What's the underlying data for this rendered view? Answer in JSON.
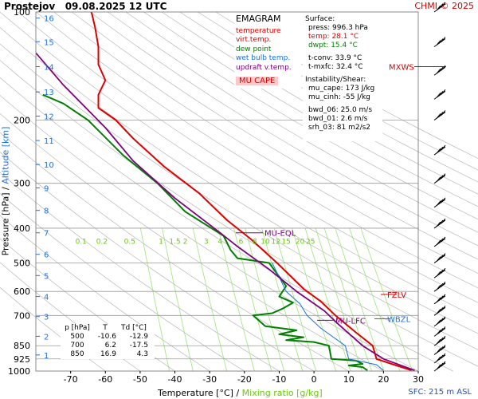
{
  "header": {
    "station": "Prostejov",
    "datetime": "09.08.2025 12 UTC",
    "copyright": "CHMI © 2025"
  },
  "legend": {
    "title": "EMAGRAM",
    "items": [
      {
        "label": "temperature",
        "color": "#e00000"
      },
      {
        "label": "virt.temp.",
        "color": "#e00000"
      },
      {
        "label": "dew point",
        "color": "#008000"
      },
      {
        "label": "wet bulb temp.",
        "color": "#1e6fe0"
      },
      {
        "label": "updraft v.temp.",
        "color": "#800080"
      }
    ],
    "mu_cape_label": "MU CAPE"
  },
  "surface": {
    "title": "Surface:",
    "press": "press: 996.3 hPa",
    "temp": "temp: 28.1 °C",
    "dwpt": "dwpt: 15.4 °C",
    "tconv": "t-conv: 33.9 °C",
    "tmxfc": "t-mxfc: 32.4 °C"
  },
  "instability": {
    "title": "Instability/Shear:",
    "mu_cape": "mu_cape: 173 J/kg",
    "mu_cinh": "mu_cinh: -55 J/kg",
    "bwd_06": "bwd_06: 25.0 m/s",
    "bwd_01": "bwd_01: 2.6 m/s",
    "srh_03": "srh_03: 81 m2/s2"
  },
  "level_table": {
    "headers": [
      "p [hPa]",
      "T",
      "Td [°C]"
    ],
    "rows": [
      [
        "500",
        "-10.6",
        "-12.9"
      ],
      [
        "700",
        "6.2",
        "-17.5"
      ],
      [
        "850",
        "16.9",
        "4.3"
      ]
    ]
  },
  "level_markers": {
    "mxws": "MXWS",
    "fzlv": "FZLV",
    "wbzl": "WBZL",
    "mu_eql": "MU-EQL",
    "mu_lfc": "MU-LFC"
  },
  "footer": {
    "sfc": "SFC: 215 m ASL"
  },
  "chart_data": {
    "type": "line",
    "xlabel": "Temperature [°C]",
    "xlabel_sep": "/",
    "xlabel2": "Mixing ratio [g/kg]",
    "ylabel": "Pressure [hPa]",
    "ylabel_sep": "/",
    "ylabel2": "Altitude [km]",
    "xlim": [
      -80,
      30
    ],
    "ylim": [
      1000,
      100
    ],
    "y_scale": "log",
    "x_ticks": [
      -70,
      -60,
      -50,
      -40,
      -30,
      -20,
      -10,
      0,
      10,
      20,
      30
    ],
    "pressure_ticks": [
      100,
      200,
      300,
      400,
      500,
      600,
      700,
      850,
      925,
      1000
    ],
    "altitude_km": [
      {
        "km": "1",
        "p": 902
      },
      {
        "km": "2",
        "p": 800
      },
      {
        "km": "3",
        "p": 705
      },
      {
        "km": "4",
        "p": 620
      },
      {
        "km": "5",
        "p": 542
      },
      {
        "km": "6",
        "p": 473
      },
      {
        "km": "7",
        "p": 412
      },
      {
        "km": "8",
        "p": 357
      },
      {
        "km": "9",
        "p": 309
      },
      {
        "km": "10",
        "p": 266
      },
      {
        "km": "11",
        "p": 228
      },
      {
        "km": "12",
        "p": 195
      },
      {
        "km": "13",
        "p": 167
      },
      {
        "km": "14",
        "p": 142
      },
      {
        "km": "15",
        "p": 121
      },
      {
        "km": "16",
        "p": 104
      }
    ],
    "mixing_ratio_labels": {
      "p": 435,
      "values": [
        [
          "0.1",
          -67
        ],
        [
          "0.2",
          -61
        ],
        [
          "0.5",
          -53
        ],
        [
          "1",
          -44
        ],
        [
          "1.5",
          -40
        ],
        [
          "2",
          -37
        ],
        [
          "3",
          -31
        ],
        [
          "4",
          -27
        ],
        [
          "6",
          -21
        ],
        [
          "8",
          -17
        ],
        [
          "10",
          -14
        ],
        [
          "12",
          -11
        ],
        [
          "15",
          -8
        ],
        [
          "20",
          -4
        ],
        [
          "25",
          -1
        ]
      ]
    },
    "series": [
      {
        "name": "temperature",
        "color": "#e00000",
        "points": [
          [
            28.1,
            996
          ],
          [
            23,
            960
          ],
          [
            18,
            925
          ],
          [
            16.9,
            850
          ],
          [
            12,
            780
          ],
          [
            6.2,
            700
          ],
          [
            2,
            640
          ],
          [
            -3,
            590
          ],
          [
            -10.6,
            500
          ],
          [
            -18,
            430
          ],
          [
            -25,
            380
          ],
          [
            -33,
            320
          ],
          [
            -43,
            270
          ],
          [
            -52,
            225
          ],
          [
            -57,
            200
          ],
          [
            -62,
            185
          ],
          [
            -62,
            170
          ],
          [
            -60,
            155
          ],
          [
            -62,
            140
          ],
          [
            -62,
            125
          ],
          [
            -63,
            110
          ],
          [
            -64,
            100
          ]
        ]
      },
      {
        "name": "dew point",
        "color": "#008000",
        "points": [
          [
            15.4,
            996
          ],
          [
            14,
            975
          ],
          [
            10,
            965
          ],
          [
            14,
            955
          ],
          [
            12,
            935
          ],
          [
            5,
            925
          ],
          [
            4.3,
            850
          ],
          [
            0,
            830
          ],
          [
            -8,
            820
          ],
          [
            -3,
            805
          ],
          [
            -10,
            790
          ],
          [
            -5,
            770
          ],
          [
            -14,
            750
          ],
          [
            -17.5,
            700
          ],
          [
            -12,
            690
          ],
          [
            -9,
            670
          ],
          [
            -6,
            645
          ],
          [
            -10,
            620
          ],
          [
            -8,
            580
          ],
          [
            -12.9,
            500
          ],
          [
            -22,
            485
          ],
          [
            -24,
            460
          ],
          [
            -26,
            420
          ],
          [
            -37,
            360
          ],
          [
            -45,
            300
          ],
          [
            -55,
            250
          ],
          [
            -65,
            200
          ],
          [
            -72,
            180
          ],
          [
            -78,
            170
          ]
        ]
      },
      {
        "name": "wet bulb temp.",
        "color": "#1e6fe0",
        "points": [
          [
            20,
            996
          ],
          [
            18,
            960
          ],
          [
            10,
            925
          ],
          [
            9,
            850
          ],
          [
            2,
            760
          ],
          [
            -2,
            700
          ],
          [
            -4,
            650
          ],
          [
            -8,
            600
          ],
          [
            -12,
            500
          ]
        ]
      },
      {
        "name": "updraft v.temp.",
        "color": "#800080",
        "points": [
          [
            29,
            996
          ],
          [
            20,
            925
          ],
          [
            14,
            850
          ],
          [
            7,
            740
          ],
          [
            3,
            680
          ],
          [
            -5,
            600
          ],
          [
            -13,
            520
          ],
          [
            -22,
            450
          ],
          [
            -27,
            412
          ],
          [
            -40,
            330
          ],
          [
            -52,
            260
          ],
          [
            -60,
            210
          ],
          [
            -72,
            160
          ],
          [
            -80,
            130
          ]
        ]
      }
    ],
    "wind_barbs_p": [
      1000,
      950,
      900,
      850,
      800,
      750,
      700,
      650,
      600,
      550,
      500,
      450,
      400,
      350,
      300,
      250,
      200,
      175,
      150,
      125,
      100
    ]
  }
}
